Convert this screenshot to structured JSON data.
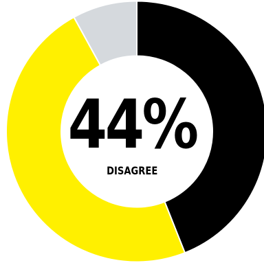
{
  "chart_data": {
    "type": "pie",
    "style": "donut",
    "title": "",
    "center_value": "44%",
    "center_label": "DISAGREE",
    "series": [
      {
        "value": 44,
        "color": "#000000"
      },
      {
        "value": 48,
        "color": "#fff000"
      },
      {
        "value": 8,
        "color": "#d5d9dd"
      }
    ],
    "start_angle_deg": 0,
    "direction": "clockwise",
    "separator_color": "#ffffff",
    "background": "#ffffff"
  }
}
